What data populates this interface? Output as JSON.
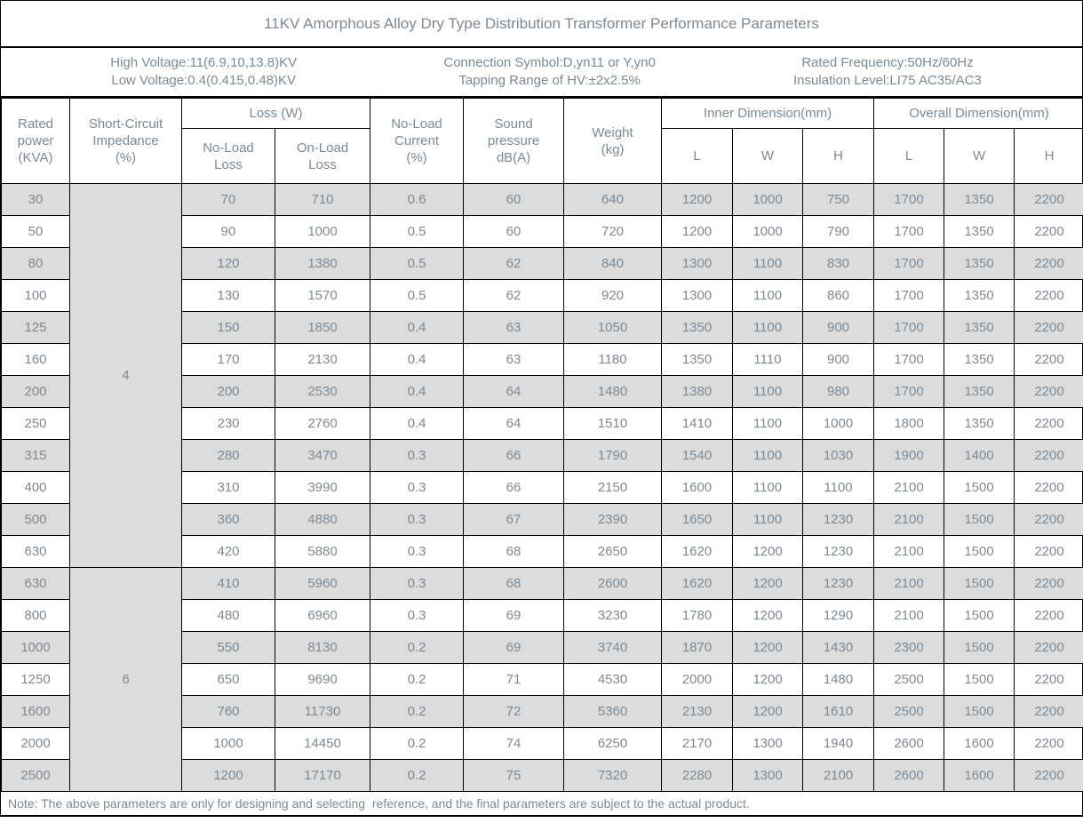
{
  "title": "11KV Amorphous Alloy Dry Type Distribution Transformer Performance Parameters",
  "info": {
    "block1": {
      "line1": "High Voltage:11(6.9,10,13.8)KV",
      "line2": "Low Voltage:0.4(0.415,0.48)KV"
    },
    "block2": {
      "line1": "Connection Symbol:D,yn11 or Y,yn0",
      "line2": "Tapping Range of HV:±2x2.5%"
    },
    "block3": {
      "line1": "Rated Frequency:50Hz/60Hz",
      "line2": "Insulation Level:LI75 AC35/AC3"
    }
  },
  "headers": {
    "rated_power": "Rated\npower\n(KVA)",
    "impedance": "Short-Circuit\nImpedance\n(%)",
    "loss_group": "Loss (W)",
    "no_load_loss": "No-Load\nLoss",
    "on_load_loss": "On-Load\nLoss",
    "no_load_current": "No-Load\nCurrent\n(%)",
    "sound_pressure": "Sound\npressure\ndB(A)",
    "weight": "Weight\n(kg)",
    "inner_group": "Inner Dimension(mm)",
    "overall_group": "Overall Dimension(mm)",
    "dim_l": "L",
    "dim_w": "W",
    "dim_h": "H"
  },
  "impedance_groups": [
    {
      "value": "4",
      "rows": 12
    },
    {
      "value": "6",
      "rows": 7
    }
  ],
  "rows": [
    [
      "30",
      "70",
      "710",
      "0.6",
      "60",
      "640",
      "1200",
      "1000",
      "750",
      "1700",
      "1350",
      "2200"
    ],
    [
      "50",
      "90",
      "1000",
      "0.5",
      "60",
      "720",
      "1200",
      "1000",
      "790",
      "1700",
      "1350",
      "2200"
    ],
    [
      "80",
      "120",
      "1380",
      "0.5",
      "62",
      "840",
      "1300",
      "1100",
      "830",
      "1700",
      "1350",
      "2200"
    ],
    [
      "100",
      "130",
      "1570",
      "0.5",
      "62",
      "920",
      "1300",
      "1100",
      "860",
      "1700",
      "1350",
      "2200"
    ],
    [
      "125",
      "150",
      "1850",
      "0.4",
      "63",
      "1050",
      "1350",
      "1100",
      "900",
      "1700",
      "1350",
      "2200"
    ],
    [
      "160",
      "170",
      "2130",
      "0.4",
      "63",
      "1180",
      "1350",
      "1110",
      "900",
      "1700",
      "1350",
      "2200"
    ],
    [
      "200",
      "200",
      "2530",
      "0.4",
      "64",
      "1480",
      "1380",
      "1100",
      "980",
      "1700",
      "1350",
      "2200"
    ],
    [
      "250",
      "230",
      "2760",
      "0.4",
      "64",
      "1510",
      "1410",
      "1100",
      "1000",
      "1800",
      "1350",
      "2200"
    ],
    [
      "315",
      "280",
      "3470",
      "0.3",
      "66",
      "1790",
      "1540",
      "1100",
      "1030",
      "1900",
      "1400",
      "2200"
    ],
    [
      "400",
      "310",
      "3990",
      "0.3",
      "66",
      "2150",
      "1600",
      "1100",
      "1100",
      "2100",
      "1500",
      "2200"
    ],
    [
      "500",
      "360",
      "4880",
      "0.3",
      "67",
      "2390",
      "1650",
      "1100",
      "1230",
      "2100",
      "1500",
      "2200"
    ],
    [
      "630",
      "420",
      "5880",
      "0.3",
      "68",
      "2650",
      "1620",
      "1200",
      "1230",
      "2100",
      "1500",
      "2200"
    ],
    [
      "630",
      "410",
      "5960",
      "0.3",
      "68",
      "2600",
      "1620",
      "1200",
      "1230",
      "2100",
      "1500",
      "2200"
    ],
    [
      "800",
      "480",
      "6960",
      "0.3",
      "69",
      "3230",
      "1780",
      "1200",
      "1290",
      "2100",
      "1500",
      "2200"
    ],
    [
      "1000",
      "550",
      "8130",
      "0.2",
      "69",
      "3740",
      "1870",
      "1200",
      "1430",
      "2300",
      "1500",
      "2200"
    ],
    [
      "1250",
      "650",
      "9690",
      "0.2",
      "71",
      "4530",
      "2000",
      "1200",
      "1480",
      "2500",
      "1500",
      "2200"
    ],
    [
      "1600",
      "760",
      "11730",
      "0.2",
      "72",
      "5360",
      "2130",
      "1200",
      "1610",
      "2500",
      "1500",
      "2200"
    ],
    [
      "2000",
      "1000",
      "14450",
      "0.2",
      "74",
      "6250",
      "2170",
      "1300",
      "1940",
      "2600",
      "1600",
      "2200"
    ],
    [
      "2500",
      "1200",
      "17170",
      "0.2",
      "75",
      "7320",
      "2280",
      "1300",
      "2100",
      "2600",
      "1600",
      "2200"
    ]
  ],
  "note": "Note: The above parameters are only for designing and selecting  reference, and the final parameters are subject to the actual product.",
  "colors": {
    "stripe": "#dcdcdc",
    "text": "#7c8a96",
    "border": "#000000"
  }
}
